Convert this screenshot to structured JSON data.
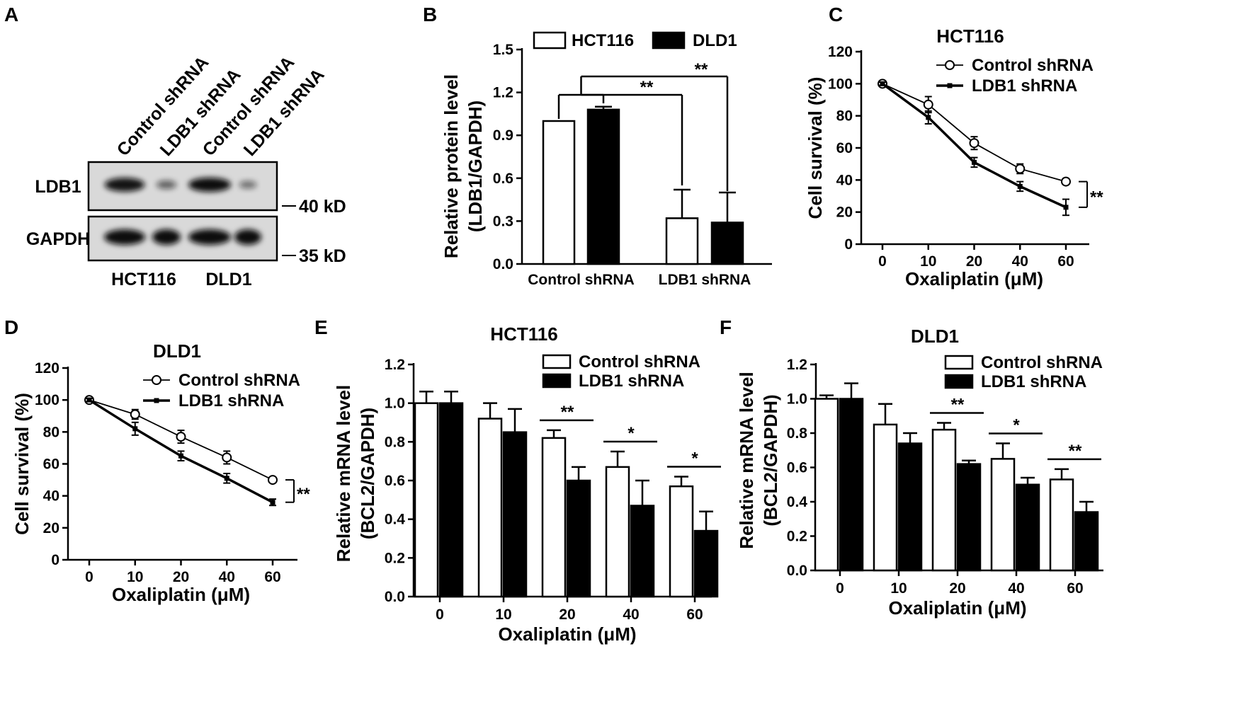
{
  "figure": {
    "panels": [
      {
        "letter": "A",
        "type": "western_blot",
        "lane_labels": [
          "Control shRNA",
          "LDB1 shRNA",
          "Control shRNA",
          "LDB1 shRNA"
        ],
        "rows": [
          {
            "label": "LDB1",
            "marker": "40 kD",
            "band_intensity": [
              0.95,
              0.35,
              1.0,
              0.25
            ]
          },
          {
            "label": "GAPDH",
            "marker": "35 kD",
            "band_intensity": [
              1.0,
              1.0,
              1.0,
              1.0
            ]
          }
        ],
        "group_labels": [
          "HCT116",
          "DLD1"
        ]
      }
    ]
  },
  "colors": {
    "black": "#000000",
    "white": "#ffffff",
    "blot_bg": "#d9d9d9",
    "band": "#0f0f0f"
  },
  "chart_data": [
    {
      "panel": "B",
      "type": "bar",
      "title": "",
      "ylabel": [
        "Relative protein level",
        "(LDB1/GAPDH)"
      ],
      "xlabel": "",
      "categories": [
        "Control shRNA",
        "LDB1 shRNA"
      ],
      "series": [
        {
          "name": "HCT116",
          "fill": "white",
          "values": [
            1.0,
            0.32
          ],
          "errors": [
            0.0,
            0.2
          ]
        },
        {
          "name": "DLD1",
          "fill": "black",
          "values": [
            1.08,
            0.29
          ],
          "errors": [
            0.02,
            0.21
          ]
        }
      ],
      "yticks": [
        "0.0",
        "0.3",
        "0.6",
        "0.9",
        "1.2",
        "1.5"
      ],
      "ylim": [
        0,
        1.5
      ],
      "significance": [
        "**",
        "**"
      ]
    },
    {
      "panel": "C",
      "type": "line",
      "title": "HCT116",
      "ylabel": "Cell survival (%)",
      "xlabel": "Oxaliplatin (μM)",
      "categories": [
        "0",
        "10",
        "20",
        "40",
        "60"
      ],
      "series": [
        {
          "name": "Control shRNA",
          "marker": "circle",
          "values": [
            100,
            87,
            63,
            47,
            39
          ],
          "errors": [
            1,
            5,
            4,
            3,
            1.5
          ]
        },
        {
          "name": "LDB1 shRNA",
          "marker": "square",
          "values": [
            100,
            79,
            51,
            36,
            23
          ],
          "errors": [
            1,
            4,
            3,
            3,
            5
          ]
        }
      ],
      "yticks": [
        "0",
        "20",
        "40",
        "60",
        "80",
        "100",
        "120"
      ],
      "ylim": [
        0,
        120
      ],
      "significance": "**"
    },
    {
      "panel": "D",
      "type": "line",
      "title": "DLD1",
      "ylabel": "Cell survival (%)",
      "xlabel": "Oxaliplatin (μM)",
      "categories": [
        "0",
        "10",
        "20",
        "40",
        "60"
      ],
      "series": [
        {
          "name": "Control shRNA",
          "marker": "circle",
          "values": [
            100,
            91,
            77,
            64,
            50
          ],
          "errors": [
            1,
            3,
            4,
            4,
            1.5
          ]
        },
        {
          "name": "LDB1 shRNA",
          "marker": "square",
          "values": [
            100,
            82,
            65,
            51,
            36
          ],
          "errors": [
            1,
            4,
            3,
            3,
            2
          ]
        }
      ],
      "yticks": [
        "0",
        "20",
        "40",
        "60",
        "80",
        "100",
        "120"
      ],
      "ylim": [
        0,
        120
      ],
      "significance": "**"
    },
    {
      "panel": "E",
      "type": "bar",
      "title": "HCT116",
      "ylabel": [
        "Relative mRNA level",
        "(BCL2/GAPDH)"
      ],
      "xlabel": "Oxaliplatin (μM)",
      "categories": [
        "0",
        "10",
        "20",
        "40",
        "60"
      ],
      "series": [
        {
          "name": "Control shRNA",
          "fill": "white",
          "values": [
            1.0,
            0.92,
            0.82,
            0.67,
            0.57
          ],
          "errors": [
            0.06,
            0.08,
            0.04,
            0.08,
            0.05
          ]
        },
        {
          "name": "LDB1 shRNA",
          "fill": "black",
          "values": [
            1.0,
            0.85,
            0.6,
            0.47,
            0.34
          ],
          "errors": [
            0.06,
            0.12,
            0.07,
            0.13,
            0.1
          ]
        }
      ],
      "yticks": [
        "0.0",
        "0.2",
        "0.4",
        "0.6",
        "0.8",
        "1.0",
        "1.2"
      ],
      "ylim": [
        0,
        1.2
      ],
      "significance": [
        "",
        "",
        "**",
        "*",
        "*"
      ]
    },
    {
      "panel": "F",
      "type": "bar",
      "title": "DLD1",
      "ylabel": [
        "Relative mRNA level",
        "(BCL2/GAPDH)"
      ],
      "xlabel": "Oxaliplatin (μM)",
      "categories": [
        "0",
        "10",
        "20",
        "40",
        "60"
      ],
      "series": [
        {
          "name": "Control shRNA",
          "fill": "white",
          "values": [
            1.0,
            0.85,
            0.82,
            0.65,
            0.53
          ],
          "errors": [
            0.02,
            0.12,
            0.04,
            0.09,
            0.06
          ]
        },
        {
          "name": "LDB1 shRNA",
          "fill": "black",
          "values": [
            1.0,
            0.74,
            0.62,
            0.5,
            0.34
          ],
          "errors": [
            0.09,
            0.06,
            0.02,
            0.04,
            0.06
          ]
        }
      ],
      "yticks": [
        "0.0",
        "0.2",
        "0.4",
        "0.6",
        "0.8",
        "1.0",
        "1.2"
      ],
      "ylim": [
        0,
        1.2
      ],
      "significance": [
        "",
        "",
        "**",
        "*",
        "**"
      ]
    }
  ]
}
